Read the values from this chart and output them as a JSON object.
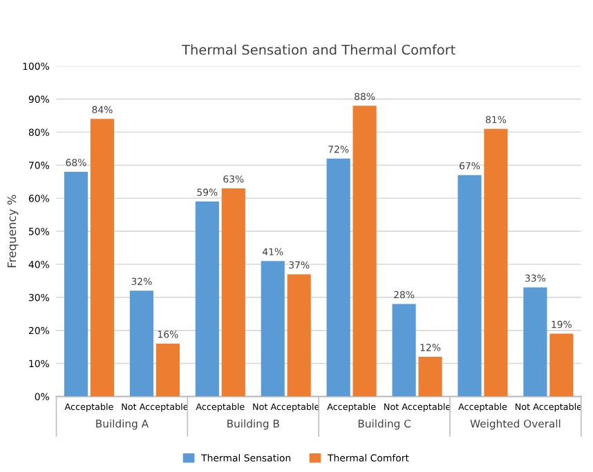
{
  "chart_data": {
    "type": "bar",
    "title": "Thermal Sensation and Thermal Comfort",
    "ylabel": "Frequency %",
    "categories": [
      "Acceptable",
      "Not Acceptable",
      "Acceptable",
      "Not Acceptable",
      "Acceptable",
      "Not Acceptable",
      "Acceptable",
      "Not Acceptable"
    ],
    "annotations": [
      "Building A",
      "Building B",
      "Building C",
      "Weighted Overall"
    ],
    "series": [
      {
        "name": "Thermal Sensation",
        "color": "#5b9bd5",
        "values": [
          68,
          32,
          59,
          41,
          72,
          28,
          67,
          33
        ],
        "value_labels": [
          "68%",
          "32%",
          "59%",
          "41%",
          "72%",
          "28%",
          "67%",
          "33%"
        ]
      },
      {
        "name": "Thermal Comfort",
        "color": "#ed7d31",
        "values": [
          84,
          16,
          63,
          37,
          88,
          12,
          81,
          19
        ],
        "value_labels": [
          "84%",
          "16%",
          "63%",
          "37%",
          "88%",
          "12%",
          "81%",
          "19%"
        ]
      }
    ],
    "ylim": [
      0,
      100
    ],
    "yticks": [
      {
        "value": 0,
        "label": "0%"
      },
      {
        "value": 10,
        "label": "10%"
      },
      {
        "value": 20,
        "label": "20%"
      },
      {
        "value": 30,
        "label": "30%"
      },
      {
        "value": 40,
        "label": "40%"
      },
      {
        "value": 50,
        "label": "50%"
      },
      {
        "value": 60,
        "label": "60%"
      },
      {
        "value": 70,
        "label": "70%"
      },
      {
        "value": 80,
        "label": "80%"
      },
      {
        "value": 90,
        "label": "90%"
      },
      {
        "value": 100,
        "label": "100%"
      }
    ],
    "grid": "y",
    "legend": "bottom"
  }
}
